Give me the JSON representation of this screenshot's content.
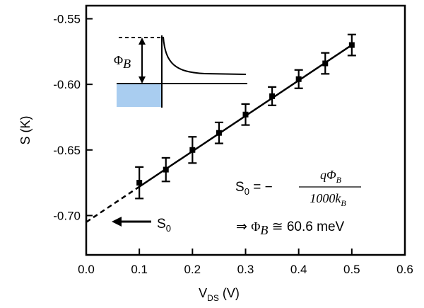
{
  "chart_data": {
    "type": "scatter",
    "xlabel": {
      "main": "V",
      "sub": "DS",
      "unit": " (V)"
    },
    "ylabel": "S (K)",
    "xlim": [
      0.0,
      0.6
    ],
    "ylim": [
      -0.73,
      -0.54
    ],
    "x_ticks": [
      0.0,
      0.1,
      0.2,
      0.3,
      0.4,
      0.5,
      0.6
    ],
    "x_tick_labels": [
      "0.0",
      "0.1",
      "0.2",
      "0.3",
      "0.4",
      "0.5",
      "0.6"
    ],
    "y_ticks": [
      -0.55,
      -0.6,
      -0.65,
      -0.7
    ],
    "y_tick_labels": [
      "-0.55",
      "-0.60",
      "-0.65",
      "-0.70"
    ],
    "grid": false,
    "series": [
      {
        "x": [
          0.1,
          0.15,
          0.2,
          0.25,
          0.3,
          0.35,
          0.4,
          0.45,
          0.5
        ],
        "y": [
          -0.675,
          -0.665,
          -0.65,
          -0.637,
          -0.623,
          -0.609,
          -0.596,
          -0.584,
          -0.57
        ],
        "err": [
          0.012,
          0.009,
          0.01,
          0.008,
          0.008,
          0.007,
          0.007,
          0.008,
          0.008
        ]
      }
    ],
    "fit_line": {
      "solid_x": [
        0.1,
        0.5
      ],
      "dashed_x": [
        0.0,
        0.1
      ],
      "intercept": -0.705,
      "slope": 0.27
    },
    "annotations": {
      "s0_label": "S",
      "s0_sub": "0",
      "formula_lhs": "S",
      "formula_lhs_sub": "0",
      "formula_eq": " = −",
      "formula_num": "qΦ",
      "formula_num_sub": "B",
      "formula_den": "1000k",
      "formula_den_sub": "B",
      "result_arrow": "⇒",
      "result_phi": "Φ",
      "result_phi_sub": "B",
      "result_value": " ≅ 60.6 meV"
    },
    "inset": {
      "barrier_label": "Φ",
      "barrier_label_sub": "B",
      "fill_color": "#a9cdf0"
    }
  }
}
